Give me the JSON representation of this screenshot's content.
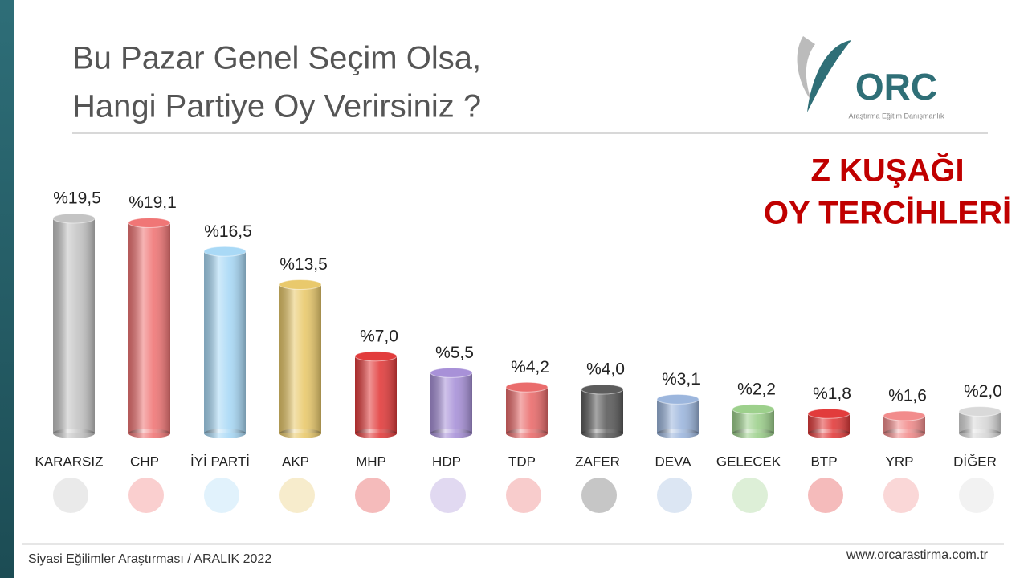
{
  "chart_data": {
    "type": "bar",
    "title_lines": [
      "Bu Pazar Genel Seçim Olsa,",
      "Hangi Partiye Oy Verirsiniz ?"
    ],
    "subtitle_lines": [
      "Z KUŞAĞI",
      "OY TERCİHLERİ"
    ],
    "categories": [
      "KARARSIZ",
      "CHP",
      "İYİ PARTİ",
      "AKP",
      "MHP",
      "HDP",
      "TDP",
      "ZAFER",
      "DEVA",
      "GELECEK",
      "BTP",
      "YRP",
      "DİĞER"
    ],
    "values": [
      19.5,
      19.1,
      16.5,
      13.5,
      7.0,
      5.5,
      4.2,
      4.0,
      3.1,
      2.2,
      1.8,
      1.6,
      2.0
    ],
    "value_labels": [
      "%19,5",
      "%19,1",
      "%16,5",
      "%13,5",
      "%7,0",
      "%5,5",
      "%4,2",
      "%4,0",
      "%3,1",
      "%2,2",
      "%1,8",
      "%1,6",
      "%2,0"
    ],
    "colors": [
      "#c4c4c4",
      "#f07676",
      "#a9d9f6",
      "#e9c96c",
      "#e23c3c",
      "#a891d8",
      "#ea6c6c",
      "#5c5c5c",
      "#9cb6dd",
      "#9dd08c",
      "#e23c3c",
      "#f28c8c",
      "#d9d9d9"
    ]
  },
  "logo": {
    "name": "ORC",
    "tagline": "Araştırma Eğitim Danışmanlık"
  },
  "footer": {
    "source": "Siyasi Eğilimler Araştırması / ARALIK 2022",
    "website": "www.orcarastirma.com.tr"
  }
}
